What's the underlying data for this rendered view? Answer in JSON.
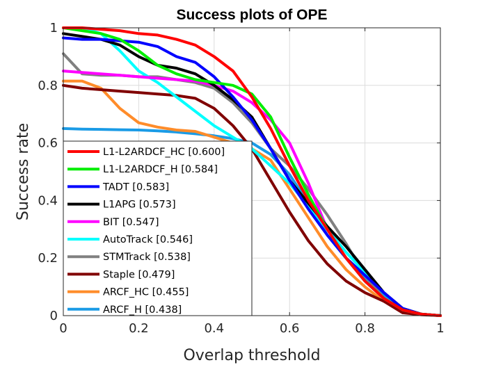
{
  "chart_data": {
    "type": "line",
    "title": "Success plots of OPE",
    "xlabel": "Overlap threshold",
    "ylabel": "Success rate",
    "xlim": [
      0,
      1
    ],
    "ylim": [
      0,
      1
    ],
    "x_ticks": [
      "0",
      "0.2",
      "0.4",
      "0.6",
      "0.8",
      "1"
    ],
    "y_ticks": [
      "0",
      "0.2",
      "0.4",
      "0.6",
      "0.8",
      "1"
    ],
    "grid": true,
    "legend_position": "bottom-left",
    "x": [
      0,
      0.05,
      0.1,
      0.15,
      0.2,
      0.25,
      0.3,
      0.35,
      0.4,
      0.45,
      0.5,
      0.55,
      0.6,
      0.65,
      0.7,
      0.75,
      0.8,
      0.85,
      0.9,
      0.95,
      1.0
    ],
    "series": [
      {
        "name": "L1-L2ARDCF_HC [0.600]",
        "color": "#ff0000",
        "values": [
          1.0,
          1.0,
          0.995,
          0.99,
          0.98,
          0.975,
          0.96,
          0.94,
          0.9,
          0.85,
          0.76,
          0.65,
          0.52,
          0.4,
          0.3,
          0.2,
          0.12,
          0.06,
          0.02,
          0.005,
          0.0
        ]
      },
      {
        "name": "L1-L2ARDCF_H [0.584]",
        "color": "#00ee00",
        "values": [
          1.0,
          0.99,
          0.98,
          0.96,
          0.92,
          0.87,
          0.84,
          0.82,
          0.81,
          0.8,
          0.77,
          0.69,
          0.55,
          0.42,
          0.3,
          0.2,
          0.12,
          0.06,
          0.02,
          0.005,
          0.0
        ]
      },
      {
        "name": "TADT [0.583]",
        "color": "#0000ff",
        "values": [
          0.965,
          0.96,
          0.96,
          0.955,
          0.95,
          0.935,
          0.9,
          0.88,
          0.83,
          0.76,
          0.68,
          0.58,
          0.47,
          0.37,
          0.28,
          0.2,
          0.14,
          0.08,
          0.025,
          0.005,
          0.0
        ]
      },
      {
        "name": "L1APG [0.573]",
        "color": "#000000",
        "values": [
          0.98,
          0.97,
          0.96,
          0.94,
          0.9,
          0.87,
          0.86,
          0.84,
          0.8,
          0.75,
          0.69,
          0.58,
          0.47,
          0.39,
          0.31,
          0.24,
          0.16,
          0.08,
          0.025,
          0.005,
          0.0
        ]
      },
      {
        "name": "BIT [0.547]",
        "color": "#ff00ff",
        "values": [
          0.85,
          0.845,
          0.84,
          0.835,
          0.83,
          0.825,
          0.82,
          0.815,
          0.8,
          0.78,
          0.74,
          0.68,
          0.6,
          0.46,
          0.3,
          0.2,
          0.12,
          0.06,
          0.02,
          0.005,
          0.0
        ]
      },
      {
        "name": "AutoTrack [0.546]",
        "color": "#00ffff",
        "values": [
          1.0,
          1.0,
          0.98,
          0.92,
          0.85,
          0.81,
          0.76,
          0.71,
          0.66,
          0.62,
          0.58,
          0.52,
          0.46,
          0.38,
          0.3,
          0.22,
          0.15,
          0.08,
          0.02,
          0.005,
          0.0
        ]
      },
      {
        "name": "STMTrack [0.538]",
        "color": "#808080",
        "values": [
          0.91,
          0.84,
          0.835,
          0.835,
          0.83,
          0.83,
          0.82,
          0.81,
          0.79,
          0.74,
          0.67,
          0.58,
          0.52,
          0.44,
          0.35,
          0.25,
          0.14,
          0.06,
          0.02,
          0.005,
          0.0
        ]
      },
      {
        "name": "Staple [0.479]",
        "color": "#800000",
        "values": [
          0.8,
          0.79,
          0.785,
          0.78,
          0.775,
          0.77,
          0.765,
          0.755,
          0.72,
          0.66,
          0.58,
          0.47,
          0.36,
          0.26,
          0.18,
          0.12,
          0.08,
          0.05,
          0.01,
          0.003,
          0.0
        ]
      },
      {
        "name": "ARCF_HC [0.455]",
        "color": "#ff8c2a",
        "values": [
          0.815,
          0.815,
          0.79,
          0.72,
          0.67,
          0.655,
          0.645,
          0.64,
          0.62,
          0.6,
          0.58,
          0.54,
          0.44,
          0.34,
          0.24,
          0.16,
          0.1,
          0.05,
          0.02,
          0.005,
          0.0
        ]
      },
      {
        "name": "ARCF_H [0.438]",
        "color": "#1a9be6",
        "values": [
          0.65,
          0.648,
          0.647,
          0.646,
          0.645,
          0.642,
          0.638,
          0.632,
          0.625,
          0.615,
          0.6,
          0.56,
          0.49,
          0.39,
          0.28,
          0.2,
          0.13,
          0.07,
          0.02,
          0.005,
          0.0
        ]
      }
    ]
  }
}
